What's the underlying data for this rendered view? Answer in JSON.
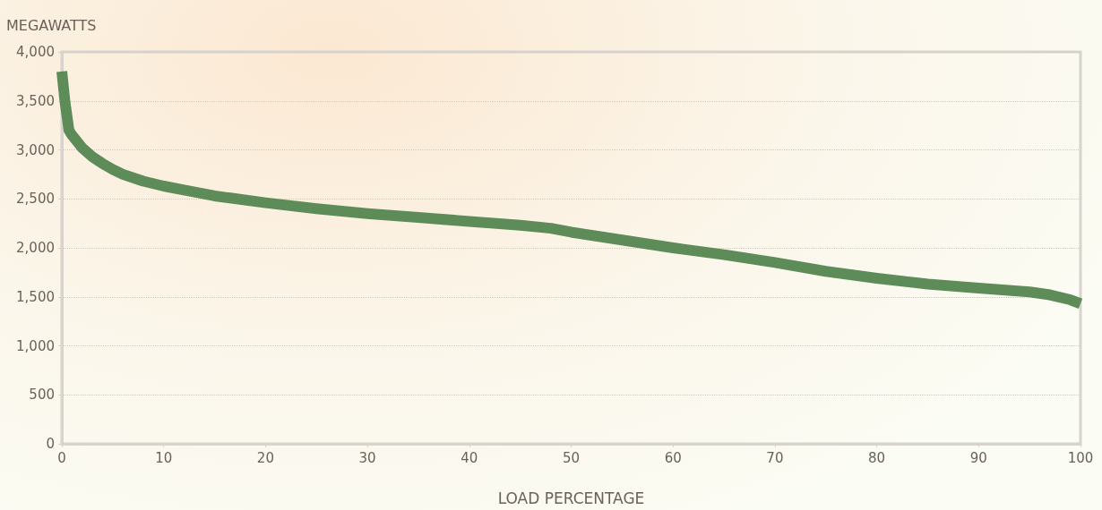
{
  "chart_data": {
    "type": "line",
    "xlabel": "LOAD PERCENTAGE",
    "ylabel": "MEGAWATTS",
    "x": [
      0,
      0.3,
      0.7,
      1,
      2,
      3,
      4,
      5,
      6,
      8,
      10,
      12,
      15,
      20,
      25,
      30,
      35,
      40,
      45,
      48,
      50,
      55,
      60,
      65,
      70,
      75,
      80,
      85,
      90,
      95,
      97,
      99,
      100
    ],
    "series": [
      {
        "color": "#5e8c58",
        "values": [
          3800,
          3500,
          3200,
          3150,
          3020,
          2930,
          2860,
          2800,
          2750,
          2680,
          2630,
          2590,
          2530,
          2460,
          2400,
          2350,
          2310,
          2270,
          2230,
          2200,
          2160,
          2080,
          2000,
          1930,
          1850,
          1760,
          1690,
          1630,
          1590,
          1550,
          1520,
          1470,
          1430
        ]
      }
    ],
    "xlim": [
      0,
      100
    ],
    "xticks": [
      0,
      10,
      20,
      30,
      40,
      50,
      60,
      70,
      80,
      90,
      100
    ],
    "ylim": [
      0,
      4000
    ],
    "yticks": [
      {
        "value": 0,
        "label": "0"
      },
      {
        "value": 500,
        "label": "500"
      },
      {
        "value": 1000,
        "label": "1,000"
      },
      {
        "value": 1500,
        "label": "1,500"
      },
      {
        "value": 2000,
        "label": "2,000"
      },
      {
        "value": 2500,
        "label": "2,500"
      },
      {
        "value": 3000,
        "label": "3,000"
      },
      {
        "value": 3500,
        "label": "3,500"
      },
      {
        "value": 4000,
        "label": "4,000"
      }
    ],
    "grid": "y",
    "marker": "none",
    "line_style": "solid"
  }
}
